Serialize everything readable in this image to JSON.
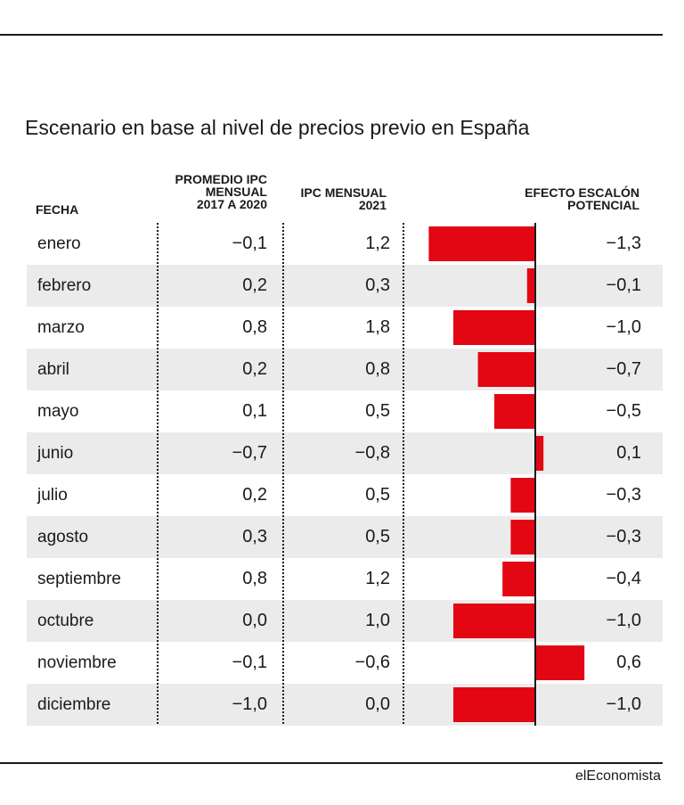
{
  "title": "Escenario en base al nivel de precios previo en España",
  "source": "elEconomista",
  "headers": {
    "fecha": "FECHA",
    "promedio": [
      "PROMEDIO IPC",
      "MENSUAL",
      "2017 A 2020"
    ],
    "ipc": [
      "IPC MENSUAL",
      "2021"
    ],
    "efecto": [
      "EFECTO ESCALÓN",
      "POTENCIAL"
    ]
  },
  "colors": {
    "bar": "#e30613",
    "shade": "#ebebeb",
    "axis": "#1a1a1a"
  },
  "chart_data": {
    "type": "table",
    "columns": [
      "FECHA",
      "PROMEDIO IPC MENSUAL 2017 A 2020",
      "IPC MENSUAL 2021",
      "EFECTO ESCALÓN POTENCIAL"
    ],
    "bar_column": "EFECTO ESCALÓN POTENCIAL",
    "rows": [
      {
        "fecha": "enero",
        "promedio": "−0,1",
        "ipc": "1,2",
        "efecto": "−1,3",
        "efecto_value": -1.3
      },
      {
        "fecha": "febrero",
        "promedio": "0,2",
        "ipc": "0,3",
        "efecto": "−0,1",
        "efecto_value": -0.1
      },
      {
        "fecha": "marzo",
        "promedio": "0,8",
        "ipc": "1,8",
        "efecto": "−1,0",
        "efecto_value": -1.0
      },
      {
        "fecha": "abril",
        "promedio": "0,2",
        "ipc": "0,8",
        "efecto": "−0,7",
        "efecto_value": -0.7
      },
      {
        "fecha": "mayo",
        "promedio": "0,1",
        "ipc": "0,5",
        "efecto": "−0,5",
        "efecto_value": -0.5
      },
      {
        "fecha": "junio",
        "promedio": "−0,7",
        "ipc": "−0,8",
        "efecto": "0,1",
        "efecto_value": 0.1
      },
      {
        "fecha": "julio",
        "promedio": "0,2",
        "ipc": "0,5",
        "efecto": "−0,3",
        "efecto_value": -0.3
      },
      {
        "fecha": "agosto",
        "promedio": "0,3",
        "ipc": "0,5",
        "efecto": "−0,3",
        "efecto_value": -0.3
      },
      {
        "fecha": "septiembre",
        "promedio": "0,8",
        "ipc": "1,2",
        "efecto": "−0,4",
        "efecto_value": -0.4
      },
      {
        "fecha": "octubre",
        "promedio": "0,0",
        "ipc": "1,0",
        "efecto": "−1,0",
        "efecto_value": -1.0
      },
      {
        "fecha": "noviembre",
        "promedio": "−0,1",
        "ipc": "−0,6",
        "efecto": "0,6",
        "efecto_value": 0.6
      },
      {
        "fecha": "diciembre",
        "promedio": "−1,0",
        "ipc": "0,0",
        "efecto": "−1,0",
        "efecto_value": -1.0
      }
    ]
  }
}
